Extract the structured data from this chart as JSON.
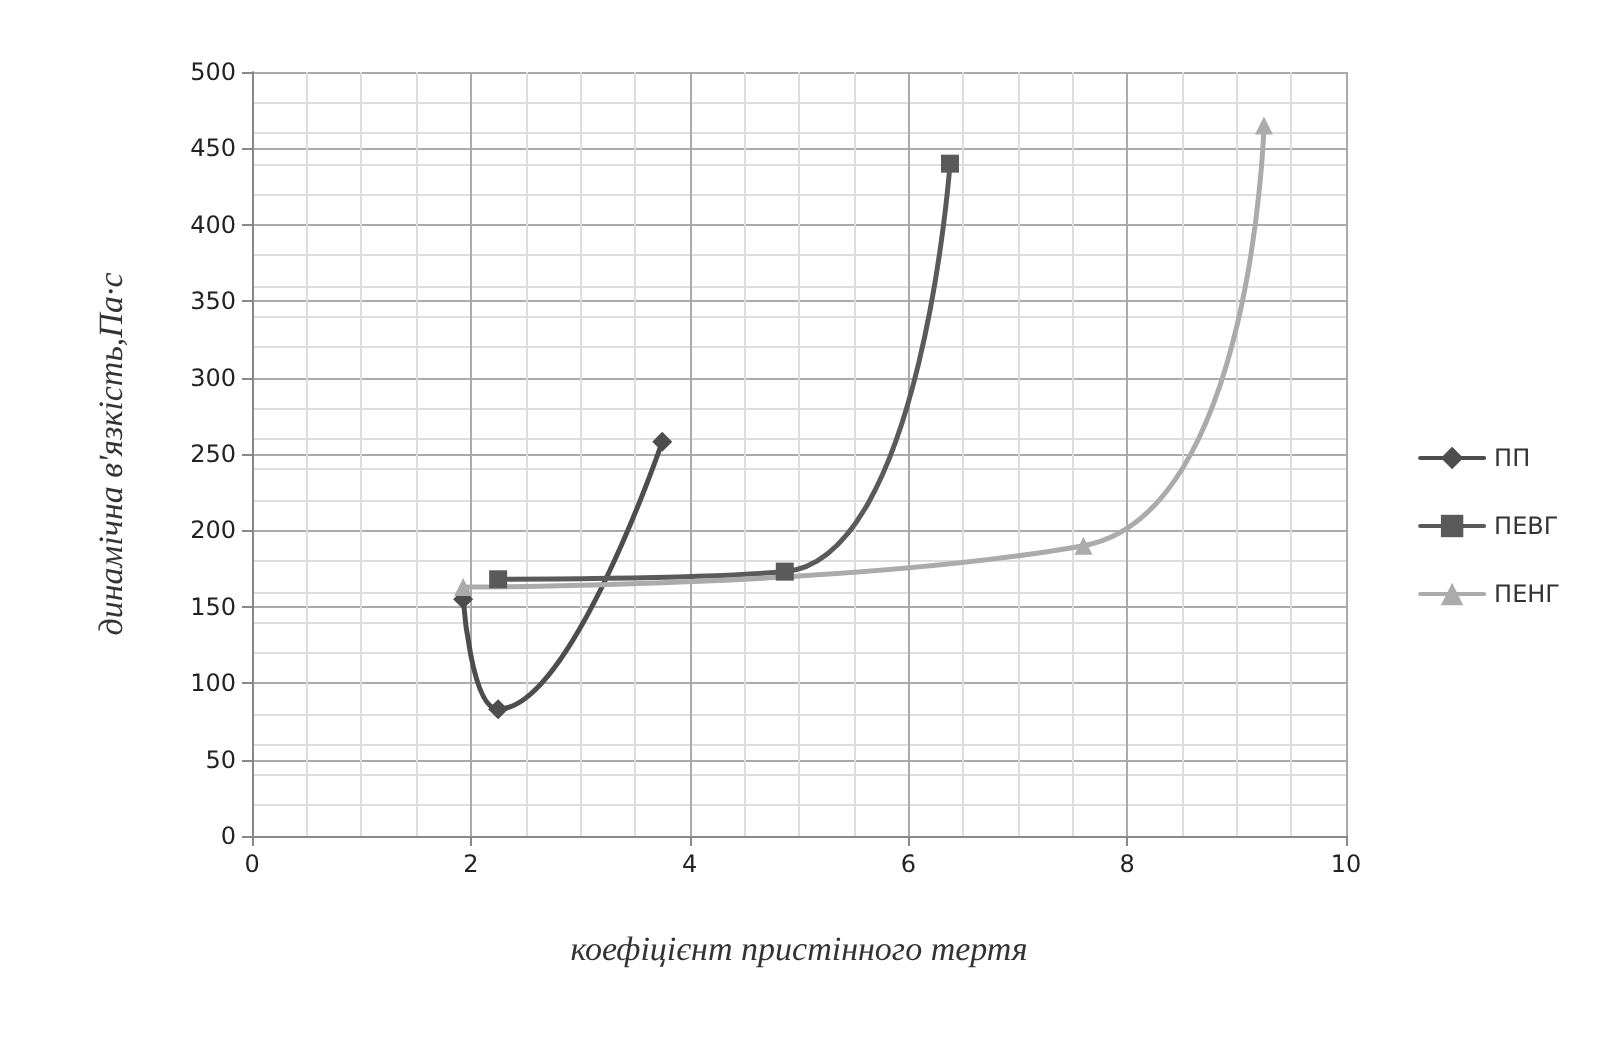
{
  "chart_data": {
    "type": "line",
    "xlabel": "коефіцієнт пристінного тертя",
    "ylabel": "динамічна в'язкість,Па·с",
    "xlim": [
      0,
      10
    ],
    "xticks": [
      0,
      2,
      4,
      6,
      8,
      10
    ],
    "ylim": [
      0,
      500
    ],
    "yticks": [
      0,
      50,
      100,
      150,
      200,
      250,
      300,
      350,
      400,
      450,
      500
    ],
    "grid": true,
    "legend": "right",
    "series": [
      {
        "name": "ПП",
        "color": "#4d4d4d",
        "marker": "diamond",
        "x": [
          1.93,
          2.25,
          3.75
        ],
        "values": [
          155,
          83,
          258
        ]
      },
      {
        "name": "ПЕВГ",
        "color": "#5a5a5a",
        "marker": "square",
        "x": [
          2.25,
          4.87,
          6.38
        ],
        "values": [
          168,
          173,
          440
        ]
      },
      {
        "name": "ПЕНГ",
        "color": "#ababab",
        "marker": "triangle",
        "x": [
          1.93,
          7.6,
          9.25
        ],
        "values": [
          163,
          190,
          465
        ]
      }
    ]
  }
}
